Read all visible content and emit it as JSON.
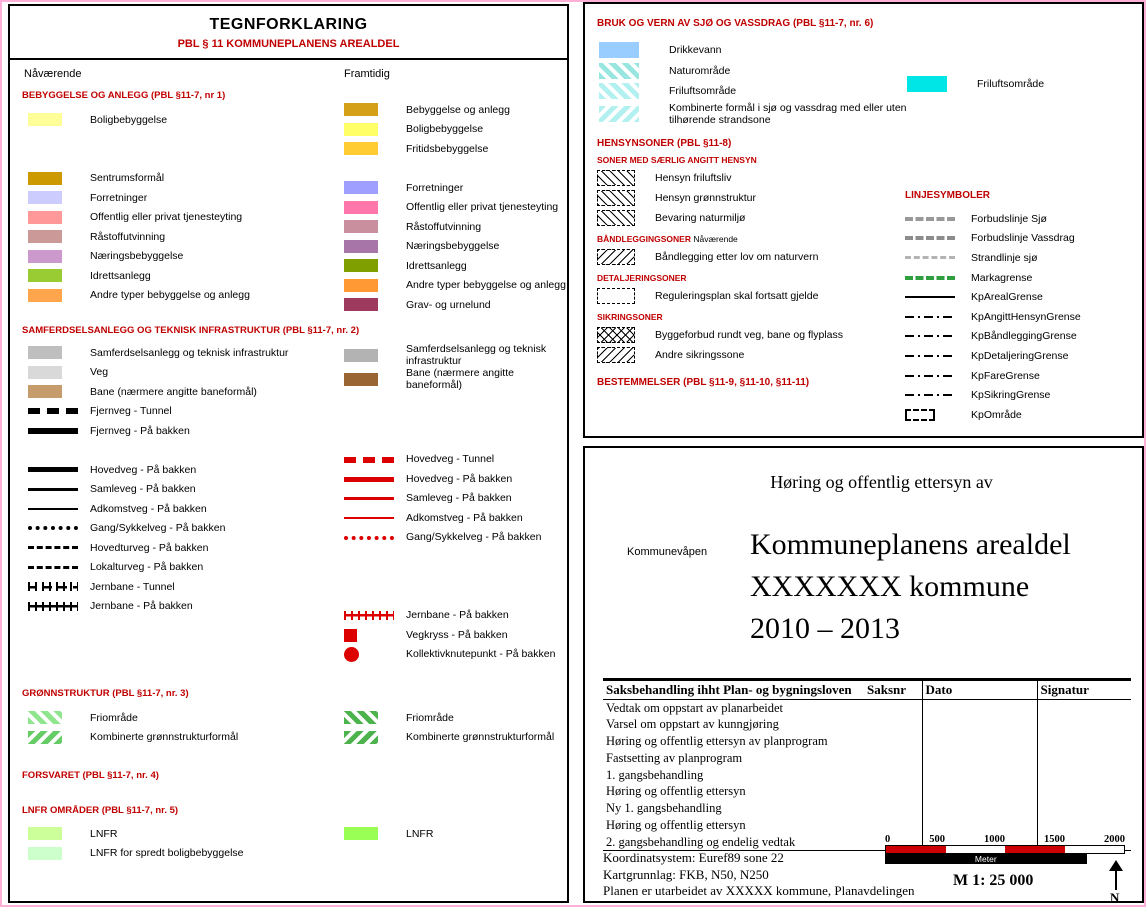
{
  "colors": {
    "heading_red": "#c00000",
    "future_line_red": "#dd0000",
    "scale_red": "#cc0000"
  },
  "left": {
    "title": "TEGNFORKLARING",
    "subtitle": "PBL § 11 KOMMUNEPLANENS AREALDEL",
    "col_now": "Nåværende",
    "col_future": "Framtidig",
    "sec_bebyggelse": "BEBYGGELSE OG ANLEGG (PBL §11-7, nr 1)",
    "bebyggelse_now": [
      {
        "label": "Boligbebyggelse",
        "sw": {
          "type": "fill",
          "color": "#ffff99"
        }
      },
      {
        "sw": {
          "type": "spacer"
        }
      },
      {
        "sw": {
          "type": "spacer"
        }
      },
      {
        "label": "Sentrumsformål",
        "sw": {
          "type": "fill",
          "color": "#cc9900"
        }
      },
      {
        "label": "Forretninger",
        "sw": {
          "type": "fill",
          "color": "#ccccff"
        }
      },
      {
        "label": "Offentlig eller privat tjenesteyting",
        "sw": {
          "type": "fill",
          "color": "#ff9999"
        }
      },
      {
        "label": "Råstoffutvinning",
        "sw": {
          "type": "fill",
          "color": "#cc9999"
        }
      },
      {
        "label": "Næringsbebyggelse",
        "sw": {
          "type": "fill",
          "color": "#cc99cc"
        }
      },
      {
        "label": "Idrettsanlegg",
        "sw": {
          "type": "fill",
          "color": "#99cc33"
        }
      },
      {
        "label": "Andre typer bebyggelse og anlegg",
        "sw": {
          "type": "fill",
          "color": "#ffa64d"
        }
      }
    ],
    "bebyggelse_future": [
      {
        "label": "Bebyggelse og anlegg",
        "sw": {
          "type": "fill",
          "color": "#d4a017"
        }
      },
      {
        "label": "Boligbebyggelse",
        "sw": {
          "type": "fill",
          "color": "#ffff66"
        }
      },
      {
        "label": "Fritidsbebyggelse",
        "sw": {
          "type": "fill",
          "color": "#ffcc33"
        }
      },
      {
        "sw": {
          "type": "spacer"
        }
      },
      {
        "label": "Forretninger",
        "sw": {
          "type": "fill",
          "color": "#9f9fff"
        }
      },
      {
        "label": "Offentlig eller privat tjenesteyting",
        "sw": {
          "type": "fill",
          "color": "#ff77aa"
        }
      },
      {
        "label": "Råstoffutvinning",
        "sw": {
          "type": "fill",
          "color": "#c98f9f"
        }
      },
      {
        "label": "Næringsbebyggelse",
        "sw": {
          "type": "fill",
          "color": "#a875a8"
        }
      },
      {
        "label": "Idrettsanlegg",
        "sw": {
          "type": "fill",
          "color": "#7f9f00"
        }
      },
      {
        "label": "Andre typer bebyggelse og anlegg",
        "sw": {
          "type": "fill",
          "color": "#ff9933"
        }
      },
      {
        "label": "Grav- og urnelund",
        "sw": {
          "type": "fill",
          "color": "#9e3a5d"
        }
      }
    ],
    "sec_samferdsel": "SAMFERDSELSANLEGG OG TEKNISK INFRASTRUKTUR (PBL §11-7, nr. 2)",
    "samferdsel_now": [
      {
        "label": "Samferdselsanlegg og teknisk infrastruktur",
        "sw": {
          "type": "fill",
          "color": "#bfbfbf"
        }
      },
      {
        "label": "Veg",
        "sw": {
          "type": "fill",
          "color": "#d9d9d9"
        }
      },
      {
        "label": "Bane (nærmere angitte baneformål)",
        "sw": {
          "type": "fill",
          "color": "#c69c6d"
        }
      },
      {
        "label": "Fjernveg - Tunnel",
        "sw": {
          "type": "line",
          "style": "dashed",
          "w": 6,
          "color": "#000000"
        }
      },
      {
        "label": "Fjernveg - På bakken",
        "sw": {
          "type": "line",
          "style": "solid",
          "w": 6,
          "color": "#000000"
        }
      },
      {
        "sw": {
          "type": "spacer"
        }
      },
      {
        "label": "Hovedveg - På bakken",
        "sw": {
          "type": "line",
          "style": "solid",
          "w": 5,
          "color": "#000000"
        }
      },
      {
        "label": "Samleveg - På bakken",
        "sw": {
          "type": "line",
          "style": "solid",
          "w": 3,
          "color": "#000000"
        }
      },
      {
        "label": "Adkomstveg - På bakken",
        "sw": {
          "type": "line",
          "style": "solid",
          "w": 2,
          "color": "#000000"
        }
      },
      {
        "label": "Gang/Sykkelveg - På bakken",
        "sw": {
          "type": "line",
          "style": "dotted",
          "w": 4,
          "color": "#000000"
        }
      },
      {
        "label": "Hovedturveg - På bakken",
        "sw": {
          "type": "line",
          "style": "dashed",
          "w": 3,
          "color": "#000000"
        }
      },
      {
        "label": "Lokalturveg - På bakken",
        "sw": {
          "type": "line",
          "style": "dashed",
          "w": 3,
          "color": "#000000"
        }
      },
      {
        "label": "Jernbane - Tunnel",
        "sw": {
          "type": "raildash",
          "color": "#000000"
        }
      },
      {
        "label": "Jernbane - På bakken",
        "sw": {
          "type": "rail",
          "color": "#000000"
        }
      }
    ],
    "samferdsel_future": [
      {
        "label": "Samferdselsanlegg og teknisk infrastruktur",
        "sw": {
          "type": "fill",
          "color": "#b3b3b3"
        }
      },
      {
        "label": "Bane (nærmere angitte baneformål)",
        "sw": {
          "type": "fill",
          "color": "#996633"
        }
      },
      {
        "sw": {
          "type": "spacer"
        }
      },
      {
        "sw": {
          "type": "spacer"
        }
      },
      {
        "sw": {
          "type": "spacer"
        }
      },
      {
        "label": "Hovedveg - Tunnel",
        "sw": {
          "type": "line",
          "style": "dashed",
          "w": 6,
          "color": "#dd0000"
        }
      },
      {
        "label": "Hovedveg - På bakken",
        "sw": {
          "type": "line",
          "style": "solid",
          "w": 5,
          "color": "#dd0000"
        }
      },
      {
        "label": "Samleveg - På bakken",
        "sw": {
          "type": "line",
          "style": "solid",
          "w": 3,
          "color": "#dd0000"
        }
      },
      {
        "label": "Adkomstveg - På bakken",
        "sw": {
          "type": "line",
          "style": "solid",
          "w": 2,
          "color": "#dd0000"
        }
      },
      {
        "label": "Gang/Sykkelveg - På bakken",
        "sw": {
          "type": "line",
          "style": "dotted",
          "w": 4,
          "color": "#dd0000"
        }
      },
      {
        "sw": {
          "type": "spacer"
        }
      },
      {
        "sw": {
          "type": "spacer"
        }
      },
      {
        "sw": {
          "type": "spacer"
        }
      },
      {
        "label": "Jernbane - På bakken",
        "sw": {
          "type": "rail",
          "color": "#dd0000"
        }
      },
      {
        "label": "Vegkryss - På bakken",
        "sw": {
          "type": "square",
          "color": "#dd0000"
        }
      },
      {
        "label": "Kollektivknutepunkt - På bakken",
        "sw": {
          "type": "circle",
          "color": "#dd0000"
        }
      }
    ],
    "sec_gronn": "GRØNNSTRUKTUR (PBL §11-7, nr. 3)",
    "gronn_now": [
      {
        "label": "Friområde",
        "sw": {
          "type": "hatch",
          "color": "#8fe68f",
          "angle": 45
        }
      },
      {
        "label": "Kombinerte grønnstrukturformål",
        "sw": {
          "type": "hatch",
          "color": "#66cc66",
          "angle": 135
        }
      }
    ],
    "gronn_future": [
      {
        "label": "Friområde",
        "sw": {
          "type": "hatch",
          "color": "#4db34d",
          "angle": 45
        }
      },
      {
        "label": "Kombinerte grønnstrukturformål",
        "sw": {
          "type": "hatch",
          "color": "#4db34d",
          "angle": 135
        }
      }
    ],
    "sec_forsvaret": "FORSVARET (PBL §11-7, nr. 4)",
    "sec_lnfr": "LNFR OMRÅDER (PBL §11-7, nr. 5)",
    "lnfr_now": [
      {
        "label": "LNFR",
        "sw": {
          "type": "fill",
          "color": "#ccff99"
        }
      },
      {
        "label": "LNFR for spredt boligbebyggelse",
        "sw": {
          "type": "fill",
          "color": "#ccffcc"
        }
      }
    ],
    "lnfr_future": [
      {
        "label": "LNFR",
        "sw": {
          "type": "fill",
          "color": "#99ff55"
        }
      }
    ]
  },
  "sea": {
    "heading": "BRUK OG VERN AV SJØ OG VASSDRAG (PBL §11-7, nr. 6)",
    "items": [
      {
        "label": "Drikkevann",
        "sw": {
          "type": "fill",
          "color": "#99ccff"
        }
      },
      {
        "label": "Naturområde",
        "sw": {
          "type": "hatch",
          "color": "#99e6e0",
          "angle": 45
        }
      },
      {
        "label": "Friluftsområde",
        "sw": {
          "type": "hatch",
          "color": "#b3f0f0",
          "angle": 45
        }
      },
      {
        "label": "Kombinerte formål i sjø og vassdrag med eller uten tilhørende strandsone",
        "sw": {
          "type": "hatch",
          "color": "#b3f0f0",
          "angle": 135
        }
      }
    ],
    "future_items": [
      {
        "label": "Friluftsområde",
        "sw": {
          "type": "fill",
          "color": "#00e6e6"
        }
      }
    ]
  },
  "hensyn": {
    "heading": "HENSYNSONER (PBL §11-8)",
    "groups": [
      {
        "sub": "SONER MED SÆRLIG ANGITT HENSYN",
        "items": [
          {
            "label": "Hensyn friluftsliv",
            "sw": {
              "type": "zonebox",
              "angle": 45
            }
          },
          {
            "label": "Hensyn grønnstruktur",
            "sw": {
              "type": "zonebox",
              "angle": 45
            }
          },
          {
            "label": "Bevaring naturmiljø",
            "sw": {
              "type": "zonebox",
              "angle": 45
            }
          }
        ]
      },
      {
        "sub": "BÅNDLEGGINGSONER",
        "suffix": "Nåværende",
        "items": [
          {
            "label": "Båndlegging etter lov om naturvern",
            "sw": {
              "type": "zonebox",
              "angle": 135
            }
          }
        ]
      },
      {
        "sub": "DETALJERINGSONER",
        "items": [
          {
            "label": "Reguleringsplan skal fortsatt gjelde",
            "sw": {
              "type": "dashbox"
            }
          }
        ]
      },
      {
        "sub": "SIKRINGSONER",
        "items": [
          {
            "label": "Byggeforbud rundt veg, bane og flyplass",
            "sw": {
              "type": "zonebox",
              "cross": true
            }
          },
          {
            "label": "Andre sikringssone",
            "sw": {
              "type": "zonebox",
              "angle": 135
            }
          }
        ]
      }
    ],
    "bestemmelser": "BESTEMMELSER (PBL §11-9, §11-10, §11-11)"
  },
  "linesym": {
    "heading": "LINJESYMBOLER",
    "items": [
      {
        "label": "Forbudslinje Sjø",
        "sw": {
          "type": "line",
          "style": "dashed",
          "w": 4,
          "color": "#999999"
        }
      },
      {
        "label": "Forbudslinje Vassdrag",
        "sw": {
          "type": "line",
          "style": "dashed",
          "w": 4,
          "color": "#8c8c8c"
        }
      },
      {
        "label": "Strandlinje sjø",
        "sw": {
          "type": "line",
          "style": "dashed",
          "w": 3,
          "color": "#b3b3b3"
        }
      },
      {
        "label": "Markagrense",
        "sw": {
          "type": "line",
          "style": "dashed",
          "w": 4,
          "color": "#2e9e3e"
        }
      },
      {
        "label": "KpArealGrense",
        "sw": {
          "type": "line",
          "style": "solid",
          "w": 2,
          "color": "#000000"
        }
      },
      {
        "label": "KpAngittHensynGrense",
        "sw": {
          "type": "dashdot",
          "w": 2,
          "color": "#000000"
        }
      },
      {
        "label": "KpBåndleggingGrense",
        "sw": {
          "type": "dashdot",
          "w": 2,
          "color": "#000000"
        }
      },
      {
        "label": "KpDetaljeringGrense",
        "sw": {
          "type": "dashdot",
          "w": 2,
          "color": "#000000"
        }
      },
      {
        "label": "KpFareGrense",
        "sw": {
          "type": "dashdot",
          "w": 2,
          "color": "#000000"
        }
      },
      {
        "label": "KpSikringGrense",
        "sw": {
          "type": "dashdot",
          "w": 2,
          "color": "#000000"
        }
      },
      {
        "label": "KpOmråde",
        "sw": {
          "type": "dashbox",
          "small": true
        }
      }
    ]
  },
  "titleblock": {
    "hearing": "Høring og offentlig ettersyn av",
    "coat_label": "Kommunevåpen",
    "title1": "Kommuneplanens arealdel",
    "title2": "XXXXXXX kommune",
    "title3": "2010 – 2013",
    "table": {
      "headers": [
        "Saksbehandling ihht Plan- og bygningsloven",
        "Saksnr",
        "Dato",
        "Signatur"
      ],
      "rows": [
        "Vedtak om oppstart av planarbeidet",
        "Varsel om oppstart av kunngjøring",
        "Høring og offentlig ettersyn av planprogram",
        "Fastsetting av planprogram",
        "1. gangsbehandling",
        "Høring og offentlig ettersyn",
        "Ny 1. gangsbehandling",
        "Høring og offentlig ettersyn",
        "2. gangsbehandling og endelig vedtak"
      ]
    },
    "footer_lines": [
      "Koordinatsystem: Euref89 sone 22",
      "Kartgrunnlag: FKB, N50, N250",
      "Planen er utarbeidet av XXXXX kommune, Planavdelingen"
    ],
    "scale": {
      "ticks": [
        "0",
        "500",
        "1000",
        "1500",
        "2000"
      ],
      "unit": "Meter",
      "ratio": "M 1: 25 000",
      "north": "N"
    }
  }
}
